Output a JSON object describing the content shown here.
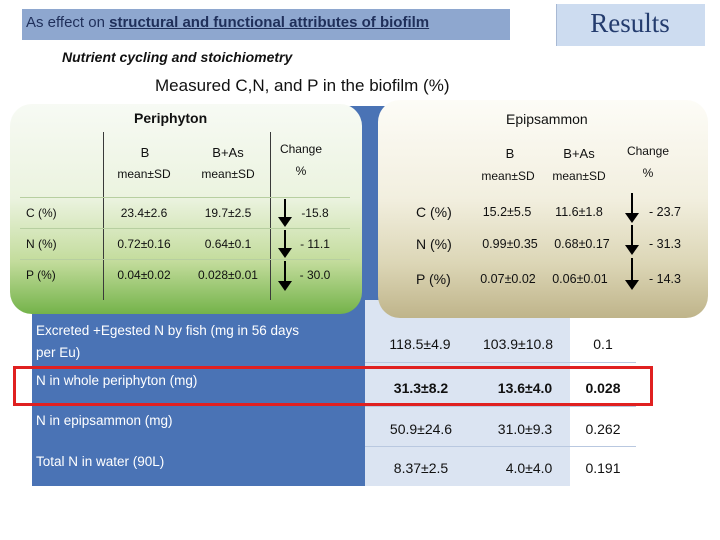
{
  "header": {
    "prefix": "As effect on ",
    "emphasis": "structural and functional attributes of biofilm",
    "results_label": "Results"
  },
  "subtitle": "Nutrient cycling and stoichiometry",
  "main_title": "Measured C,N, and P in the biofilm (%)",
  "periphyton": {
    "title": "Periphyton",
    "columns": {
      "b": "B",
      "bas": "B+As",
      "change": "Change",
      "change_unit": "%",
      "mean_sd": "mean±SD"
    },
    "rows": [
      {
        "label": "C (%)",
        "b": "23.4±2.6",
        "bas": "19.7±2.5",
        "change": "-15.8"
      },
      {
        "label": "N (%)",
        "b": "0.72±0.16",
        "bas": "0.64±0.1",
        "change": "- 11.1"
      },
      {
        "label": "P (%)",
        "b": "0.04±0.02",
        "bas": "0.028±0.01",
        "change": "- 30.0"
      }
    ]
  },
  "epipsammon": {
    "title": "Epipsammon",
    "columns": {
      "b": "B",
      "bas": "B+As",
      "change": "Change",
      "change_unit": "%",
      "mean_sd_b": "mean±SD",
      "mean_sd_bas": "mean±SD"
    },
    "rows": [
      {
        "label": "C (%)",
        "b": "15.2±5.5",
        "bas": "11.6±1.8",
        "change": "- 23.7"
      },
      {
        "label": "N (%)",
        "b": "0.99±0.35",
        "bas": "0.68±0.17",
        "change": "- 31.3"
      },
      {
        "label": "P (%)",
        "b": "0.07±0.02",
        "bas": "0.06±0.01",
        "change": "- 14.3"
      }
    ]
  },
  "bottom_table": {
    "rows": [
      {
        "label_line1": "Excreted +Egested N by fish (mg in 56 days",
        "label_line2": "per Eu)",
        "b": "118.5±4.9",
        "bas": "103.9±10.8",
        "p": "0.1"
      },
      {
        "label_line1": "N in whole periphyton (mg)",
        "b": "31.3±8.2",
        "bas": "13.6±4.0",
        "p": "0.028"
      },
      {
        "label_line1": "N in epipsammon (mg)",
        "b": "50.9±24.6",
        "bas": "31.0±9.3",
        "p": "0.262"
      },
      {
        "label_line1": "Total N in water (90L)",
        "b": "8.37±2.5",
        "bas": "4.0±4.0",
        "p": "0.191"
      }
    ]
  },
  "colors": {
    "header_bar": "#8ea7cf",
    "results_box": "#cddcf0",
    "table_blue": "#4a73b5",
    "highlight": "#e02020",
    "periphyton_green": "#74b34a",
    "epipsammon_tan": "#bfb48a"
  },
  "icons": {
    "decrease": "down-arrow-icon"
  }
}
